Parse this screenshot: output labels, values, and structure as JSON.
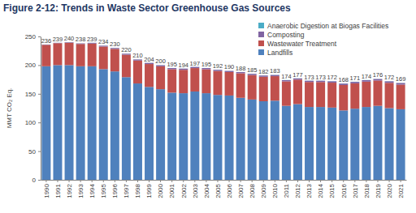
{
  "chart_data": {
    "type": "bar",
    "title": "Figure 2-12: Trends in Waste Sector Greenhouse Gas Sources",
    "y_label": "MMT CO₂ Eq.",
    "stacked": true,
    "grid": false,
    "legend": "upper right",
    "categories": [
      "1990",
      "1991",
      "1992",
      "1993",
      "1994",
      "1995",
      "1996",
      "1997",
      "1998",
      "1999",
      "2000",
      "2001",
      "2002",
      "2003",
      "2004",
      "2005",
      "2006",
      "2007",
      "2008",
      "2009",
      "2010",
      "2011",
      "2012",
      "2013",
      "2014",
      "2015",
      "2016",
      "2017",
      "2018",
      "2019",
      "2020",
      "2021"
    ],
    "series": [
      {
        "name": "Anaerobic Digestion at Biogas Facilities",
        "color": "#4bacc6",
        "values": [
          0.1,
          0.1,
          0.1,
          0.1,
          0.1,
          0.1,
          0.1,
          0.1,
          0.1,
          0.1,
          0.1,
          0.1,
          0.1,
          0.1,
          0.1,
          0.1,
          0.1,
          0.1,
          0.1,
          0.1,
          0.2,
          0.2,
          0.2,
          0.2,
          0.2,
          0.2,
          0.2,
          0.2,
          0.2,
          0.2,
          0.2,
          0.2
        ]
      },
      {
        "name": "Composting",
        "color": "#8064a2",
        "values": [
          0.5,
          0.6,
          0.8,
          1.0,
          1.3,
          1.5,
          1.6,
          1.7,
          1.9,
          2.0,
          2.0,
          2.0,
          2.1,
          2.1,
          2.1,
          2.1,
          2.0,
          2.1,
          2.2,
          2.2,
          2.1,
          2.1,
          2.1,
          2.2,
          2.3,
          2.4,
          2.5,
          2.6,
          2.6,
          2.7,
          2.7,
          2.8
        ]
      },
      {
        "name": "Wastewater Treatment",
        "color": "#c0504d",
        "values": [
          37.4,
          38.3,
          39.1,
          38.9,
          39.6,
          39.4,
          39.3,
          39.2,
          40.0,
          39.9,
          39.9,
          40.9,
          40.8,
          40.8,
          41.8,
          41.8,
          40.9,
          42.8,
          42.7,
          42.7,
          42.7,
          42.7,
          42.7,
          43.6,
          43.5,
          43.4,
          44.3,
          44.2,
          44.2,
          44.1,
          44.1,
          43.0
        ]
      },
      {
        "name": "Landfills",
        "color": "#4f81bd",
        "values": [
          198,
          200,
          200,
          198,
          198,
          193,
          189,
          179,
          168,
          162,
          158,
          152,
          151,
          154,
          151,
          148,
          147,
          143,
          140,
          137,
          138,
          129,
          132,
          127,
          127,
          126,
          121,
          124,
          127,
          129,
          125,
          123
        ]
      }
    ],
    "totals": [
      236,
      239,
      240,
      238,
      239,
      234,
      230,
      220,
      210,
      204,
      200,
      195,
      194,
      197,
      195,
      192,
      190,
      188,
      185,
      182,
      183,
      174,
      177,
      173,
      173,
      172,
      168,
      171,
      174,
      176,
      172,
      169
    ],
    "ylim": [
      0,
      250
    ],
    "yticks": [
      0,
      50,
      100,
      150,
      200,
      250
    ]
  }
}
